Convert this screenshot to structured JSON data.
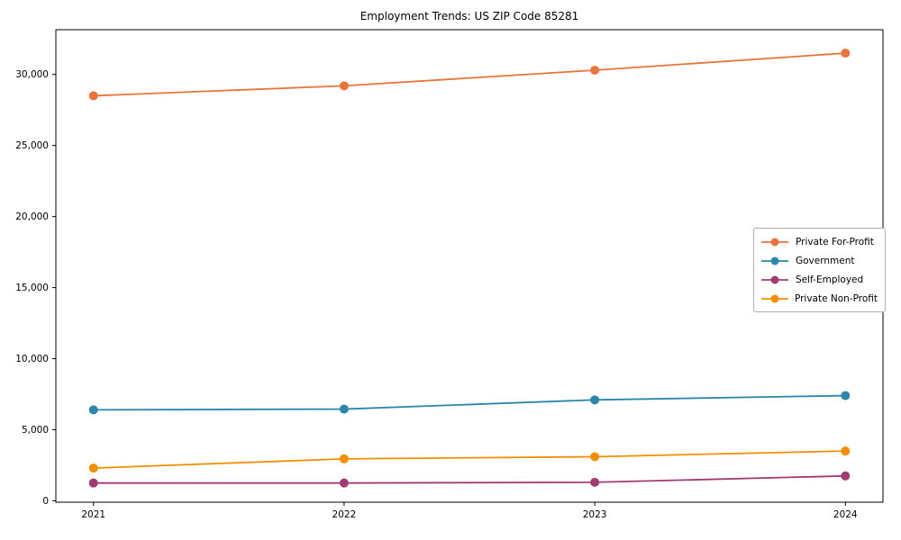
{
  "chart_data": {
    "type": "line",
    "title": "Employment Trends: US ZIP Code 85281",
    "xlabel": "",
    "ylabel": "",
    "x": [
      2021,
      2022,
      2023,
      2024
    ],
    "categories": [
      "2021",
      "2022",
      "2023",
      "2024"
    ],
    "series": [
      {
        "name": "Private For-Profit",
        "color": "#E8743B",
        "values": [
          28500,
          29200,
          30300,
          31500
        ]
      },
      {
        "name": "Government",
        "color": "#2E86AB",
        "values": [
          6400,
          6450,
          7100,
          7400
        ]
      },
      {
        "name": "Self-Employed",
        "color": "#A23B72",
        "values": [
          1250,
          1250,
          1300,
          1750
        ]
      },
      {
        "name": "Private Non-Profit",
        "color": "#F18F01",
        "values": [
          2300,
          2950,
          3100,
          3500
        ]
      }
    ],
    "yticks": [
      {
        "value": 0,
        "label": "0"
      },
      {
        "value": 5000,
        "label": "5,000"
      },
      {
        "value": 10000,
        "label": "10,000"
      },
      {
        "value": 15000,
        "label": "15,000"
      },
      {
        "value": 20000,
        "label": "20,000"
      },
      {
        "value": 25000,
        "label": "25,000"
      },
      {
        "value": 30000,
        "label": "30,000"
      }
    ],
    "xlim": [
      2020.85,
      2024.15
    ],
    "ylim": [
      -100,
      33150
    ],
    "grid": false,
    "marker": "circle",
    "legend_position": "center-right",
    "axis_color": "#000000",
    "text_color": "#000000",
    "background": "#ffffff"
  }
}
